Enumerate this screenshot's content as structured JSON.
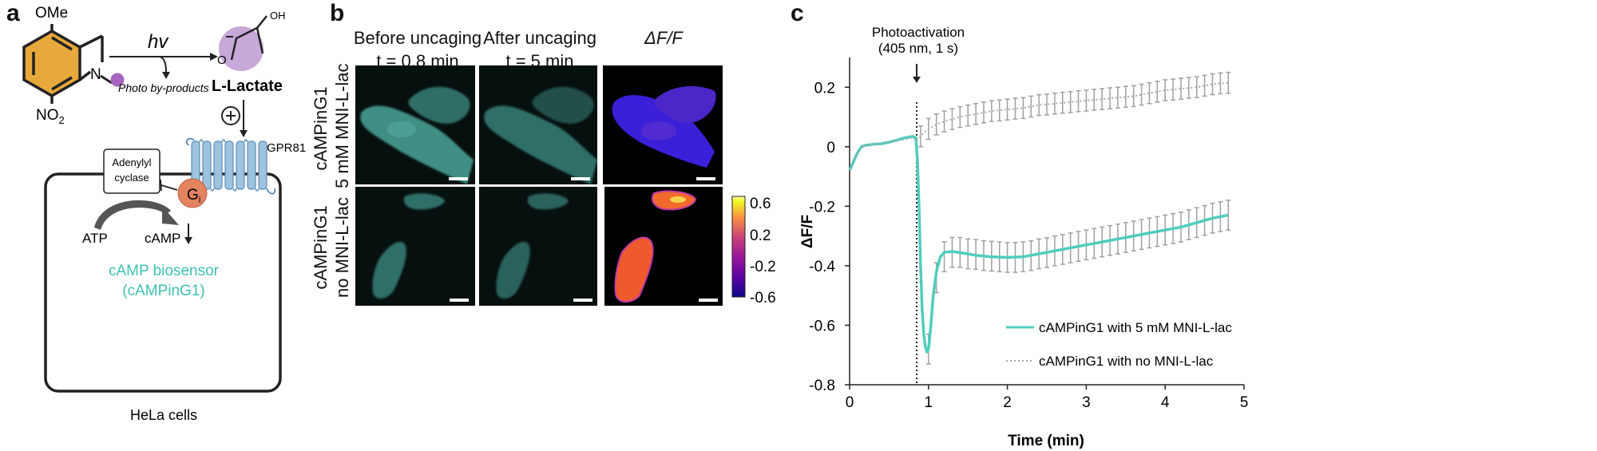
{
  "panel_a": {
    "letter": "a",
    "ome": "OMe",
    "no2": "NO",
    "no2_sub": "2",
    "n_atom": "N",
    "hv": "hv",
    "photo_byproducts": "Photo by-products",
    "oh": "OH",
    "o_atom": "O",
    "lactate": "L-Lactate",
    "plus": "+",
    "gpr81": "GPR81",
    "adenylyl": "Adenylyl",
    "cyclase": "cyclase",
    "gi": "G",
    "gi_sub": "i",
    "atp": "ATP",
    "camp": "cAMP",
    "biosensor_line1": "cAMP biosensor",
    "biosensor_line2": "(cAMPinG1)",
    "cells": "HeLa cells",
    "colors": {
      "camp_biosensor": "#3fbfb2",
      "gi": "#e4835f",
      "receptor": "#9ec3df",
      "caging_group": "#a765bf",
      "lactate_circle": "#c7a8d8",
      "indoline_ring": "#e7a93b"
    }
  },
  "panel_b": {
    "letter": "b",
    "col1_line1": "Before uncaging",
    "col1_line2": "t = 0.8 min",
    "col2_line1": "After uncaging",
    "col2_line2": "t = 5 min",
    "col3": "ΔF/F",
    "row1_line1": "cAMPinG1",
    "row1_line2": "5 mM MNI-L-lac",
    "row2_line1": "cAMPinG1",
    "row2_line2": "no MNI-L-lac",
    "colorbar_ticks": [
      "0.6",
      "0.2",
      "-0.2",
      "-0.6"
    ],
    "colorbar_range": [
      -0.6,
      0.6
    ]
  },
  "chart_data": {
    "type": "line",
    "panel_letter": "c",
    "annotation_line1": "Photoactivation",
    "annotation_line2": "(405 nm, 1 s)",
    "photoactivation_time": 0.85,
    "xlabel": "Time (min)",
    "ylabel": "ΔF/F",
    "xlim": [
      0,
      5
    ],
    "ylim": [
      -0.8,
      0.3
    ],
    "x_ticks": [
      "0",
      "1",
      "2",
      "3",
      "4",
      "5"
    ],
    "y_ticks": [
      "0.2",
      "0",
      "-0.2",
      "-0.4",
      "-0.6",
      "-0.8"
    ],
    "legend_position": "bottom-right",
    "grid": false,
    "series": [
      {
        "name": "cAMPinG1 with 5 mM MNI-L-lac",
        "color": "#4fcdbd",
        "style": "solid",
        "x": [
          0,
          0.05,
          0.1,
          0.15,
          0.2,
          0.3,
          0.4,
          0.5,
          0.6,
          0.7,
          0.8,
          0.84,
          0.86,
          0.88,
          0.9,
          0.92,
          0.94,
          0.96,
          0.98,
          1.0,
          1.03,
          1.06,
          1.1,
          1.15,
          1.2,
          1.3,
          1.4,
          1.5,
          1.6,
          1.8,
          2.0,
          2.2,
          2.4,
          2.6,
          2.8,
          3.0,
          3.2,
          3.4,
          3.6,
          3.8,
          4.0,
          4.2,
          4.4,
          4.6,
          4.8
        ],
        "y": [
          -0.08,
          -0.05,
          -0.02,
          0.0,
          0.005,
          0.008,
          0.01,
          0.015,
          0.022,
          0.03,
          0.035,
          0.03,
          -0.05,
          -0.2,
          -0.4,
          -0.55,
          -0.63,
          -0.67,
          -0.69,
          -0.68,
          -0.6,
          -0.5,
          -0.42,
          -0.37,
          -0.355,
          -0.352,
          -0.356,
          -0.36,
          -0.365,
          -0.37,
          -0.372,
          -0.37,
          -0.36,
          -0.35,
          -0.34,
          -0.33,
          -0.32,
          -0.31,
          -0.3,
          -0.29,
          -0.28,
          -0.27,
          -0.255,
          -0.24,
          -0.23
        ],
        "error_x": [
          1.0,
          1.1,
          1.2,
          1.3,
          1.4,
          1.5,
          1.6,
          1.7,
          1.8,
          1.9,
          2.0,
          2.1,
          2.2,
          2.3,
          2.4,
          2.5,
          2.6,
          2.7,
          2.8,
          2.9,
          3.0,
          3.1,
          3.2,
          3.3,
          3.4,
          3.5,
          3.6,
          3.7,
          3.8,
          3.9,
          4.0,
          4.1,
          4.2,
          4.3,
          4.4,
          4.5,
          4.6,
          4.7,
          4.8
        ],
        "error_y": [
          -0.68,
          -0.44,
          -0.37,
          -0.355,
          -0.355,
          -0.36,
          -0.362,
          -0.366,
          -0.368,
          -0.37,
          -0.372,
          -0.372,
          -0.37,
          -0.366,
          -0.36,
          -0.356,
          -0.35,
          -0.345,
          -0.34,
          -0.335,
          -0.33,
          -0.325,
          -0.32,
          -0.315,
          -0.31,
          -0.305,
          -0.3,
          -0.295,
          -0.29,
          -0.285,
          -0.28,
          -0.275,
          -0.27,
          -0.262,
          -0.255,
          -0.248,
          -0.24,
          -0.235,
          -0.23
        ],
        "error_size": 0.05
      },
      {
        "name": "cAMPinG1 with no MNI-L-lac",
        "color": "#a9a9a9",
        "style": "dotted",
        "x": [
          0,
          0.05,
          0.1,
          0.15,
          0.2,
          0.3,
          0.4,
          0.5,
          0.6,
          0.7,
          0.8,
          0.85,
          0.9,
          0.95,
          1.0,
          1.1,
          1.2,
          1.4,
          1.6,
          1.8,
          2.0,
          2.2,
          2.4,
          2.6,
          2.8,
          3.0,
          3.2,
          3.4,
          3.6,
          3.8,
          4.0,
          4.2,
          4.4,
          4.6,
          4.8
        ],
        "y": [
          -0.08,
          -0.05,
          -0.02,
          0.0,
          0.005,
          0.008,
          0.01,
          0.015,
          0.02,
          0.025,
          0.03,
          0.02,
          0.035,
          0.05,
          0.06,
          0.075,
          0.085,
          0.1,
          0.11,
          0.12,
          0.125,
          0.13,
          0.14,
          0.145,
          0.15,
          0.155,
          0.16,
          0.165,
          0.17,
          0.18,
          0.19,
          0.195,
          0.2,
          0.21,
          0.215
        ],
        "error_x": [
          0.9,
          1.0,
          1.1,
          1.2,
          1.3,
          1.4,
          1.5,
          1.6,
          1.7,
          1.8,
          1.9,
          2.0,
          2.1,
          2.2,
          2.3,
          2.4,
          2.5,
          2.6,
          2.7,
          2.8,
          2.9,
          3.0,
          3.1,
          3.2,
          3.3,
          3.4,
          3.5,
          3.6,
          3.7,
          3.8,
          3.9,
          4.0,
          4.1,
          4.2,
          4.3,
          4.4,
          4.5,
          4.6,
          4.7,
          4.8
        ],
        "error_y": [
          0.035,
          0.06,
          0.075,
          0.085,
          0.093,
          0.1,
          0.105,
          0.11,
          0.115,
          0.12,
          0.122,
          0.125,
          0.128,
          0.13,
          0.135,
          0.14,
          0.142,
          0.145,
          0.148,
          0.15,
          0.153,
          0.155,
          0.158,
          0.16,
          0.163,
          0.165,
          0.168,
          0.17,
          0.175,
          0.18,
          0.185,
          0.19,
          0.192,
          0.195,
          0.198,
          0.2,
          0.205,
          0.21,
          0.213,
          0.215
        ],
        "error_size": 0.035
      }
    ]
  }
}
